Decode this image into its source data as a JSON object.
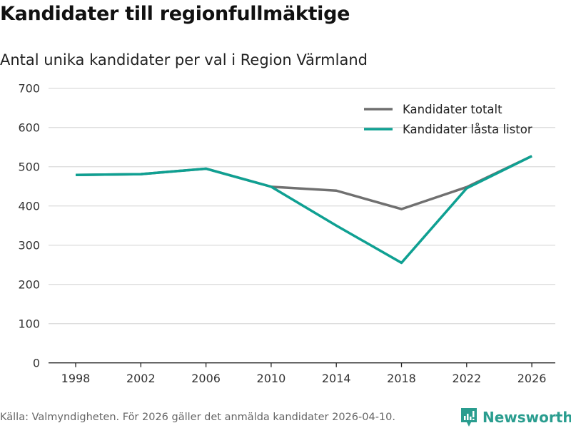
{
  "chart_data": {
    "type": "line",
    "title": "Kandidater till regionfullmäktige",
    "subtitle": "Antal unika kandidater per val i Region Värmland",
    "x": [
      1998,
      2002,
      2006,
      2010,
      2014,
      2018,
      2022,
      2026
    ],
    "xticks": [
      "1998",
      "2002",
      "2006",
      "2010",
      "2014",
      "2018",
      "2022",
      "2026"
    ],
    "yticks": [
      "0",
      "100",
      "200",
      "300",
      "400",
      "500",
      "600",
      "700"
    ],
    "ylim": [
      0,
      700
    ],
    "grid": true,
    "legend_position": "top-right",
    "series": [
      {
        "name": "Kandidater totalt",
        "color": "#707070",
        "values": [
          479,
          481,
          495,
          449,
          439,
          392,
          448,
          527
        ]
      },
      {
        "name": "Kandidater låsta listor",
        "color": "#0fa092",
        "values": [
          479,
          481,
          495,
          449,
          350,
          255,
          445,
          527
        ]
      }
    ]
  },
  "footer": {
    "source": "Källa: Valmyndigheten. För 2026 gäller det anmälda kandidater 2026-04-10.",
    "brand": "Newsworthy"
  }
}
